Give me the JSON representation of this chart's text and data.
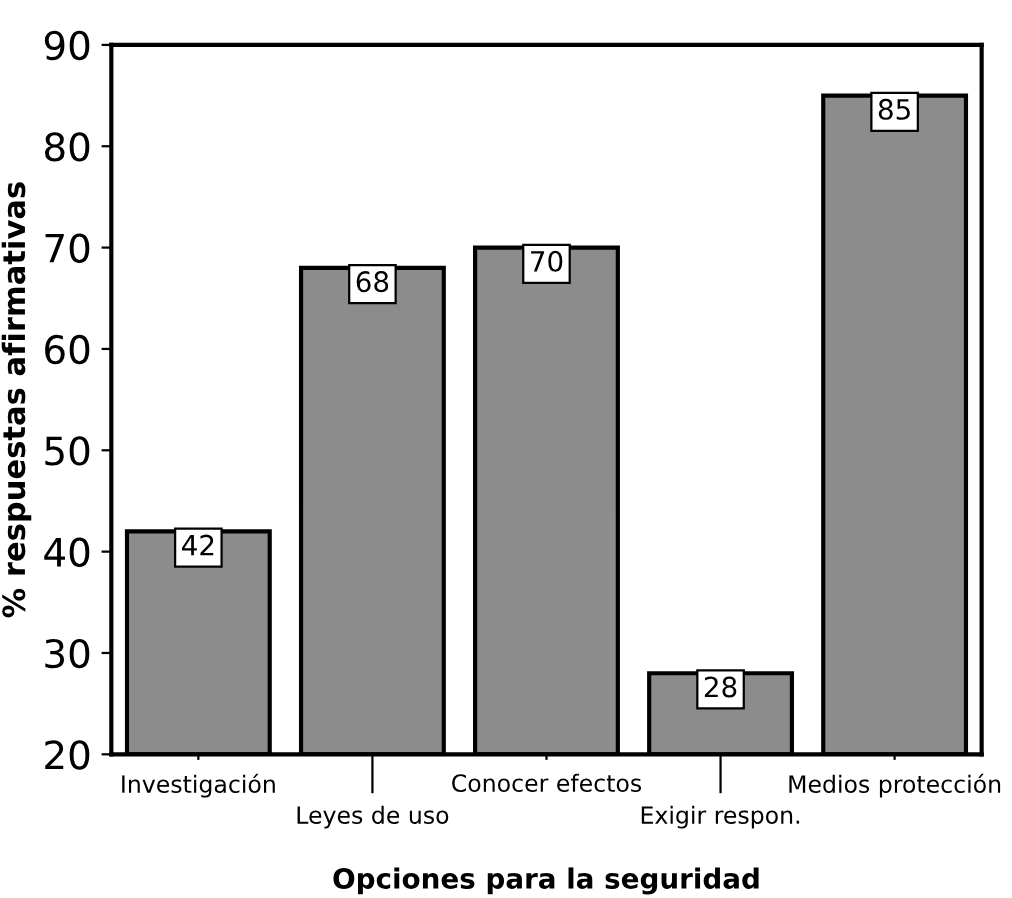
{
  "chart_data": {
    "type": "bar",
    "xlabel": "Opciones para la seguridad",
    "ylabel": "% respuestas afirmativas",
    "categories": [
      "Investigación",
      "Leyes de uso",
      "Conocer efectos",
      "Exigir respon.",
      "Medios protección"
    ],
    "values": [
      42,
      68,
      70,
      28,
      85
    ],
    "color": "#8c8c8c",
    "ylim": [
      20,
      90
    ],
    "yticks": [
      20,
      30,
      40,
      50,
      60,
      70,
      80,
      90
    ],
    "grid": false,
    "data_labels": true
  }
}
